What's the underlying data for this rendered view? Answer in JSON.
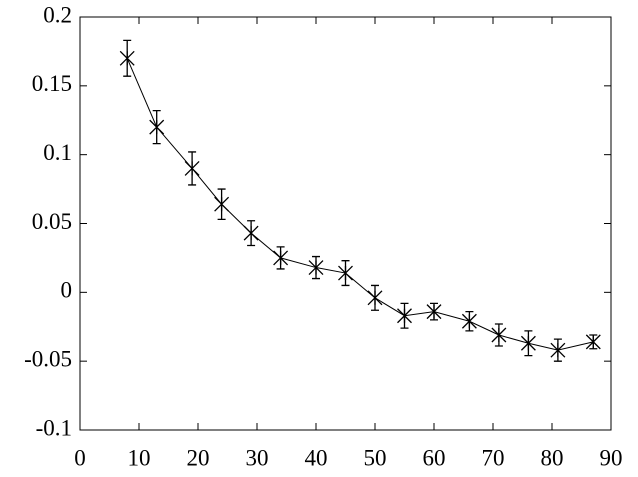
{
  "chart_data": {
    "type": "line",
    "x": [
      8,
      13,
      19,
      24,
      29,
      34,
      40,
      45,
      50,
      55,
      60,
      66,
      71,
      76,
      81,
      87
    ],
    "values": [
      0.17,
      0.12,
      0.09,
      0.064,
      0.043,
      0.025,
      0.018,
      0.014,
      -0.004,
      -0.017,
      -0.014,
      -0.021,
      -0.031,
      -0.037,
      -0.042,
      -0.036
    ],
    "errors": [
      0.013,
      0.012,
      0.012,
      0.011,
      0.009,
      0.008,
      0.008,
      0.009,
      0.009,
      0.009,
      0.006,
      0.007,
      0.008,
      0.009,
      0.008,
      0.005
    ],
    "color": "#000000",
    "xlim": [
      0,
      90
    ],
    "xticks": [
      0,
      10,
      20,
      30,
      40,
      50,
      60,
      70,
      80,
      90
    ],
    "ylim": [
      -0.1,
      0.2
    ],
    "yticks": [
      -0.1,
      -0.05,
      0,
      0.05,
      0.1,
      0.15,
      0.2
    ]
  }
}
